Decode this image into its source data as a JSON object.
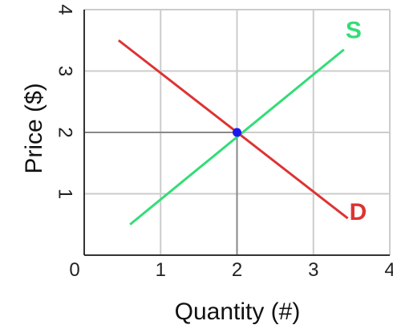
{
  "chart_data": {
    "type": "line",
    "xlabel": "Quantity (#)",
    "ylabel": "Price ($)",
    "xlim": [
      0,
      4
    ],
    "ylim": [
      0,
      4
    ],
    "x_ticks": [
      "0",
      "1",
      "2",
      "3",
      "4"
    ],
    "y_ticks": [
      "1",
      "2",
      "3",
      "4"
    ],
    "grid": true,
    "series": [
      {
        "name": "S",
        "color": "#33dd77",
        "x": [
          0.6,
          3.4
        ],
        "y": [
          0.5,
          3.35
        ]
      },
      {
        "name": "D",
        "color": "#dd3333",
        "x": [
          0.45,
          3.45
        ],
        "y": [
          3.5,
          0.6
        ]
      }
    ],
    "equilibrium": {
      "x": 2,
      "y": 2,
      "color": "#1a1aee"
    },
    "guide_color": "#888888",
    "grid_color": "#cccccc"
  }
}
